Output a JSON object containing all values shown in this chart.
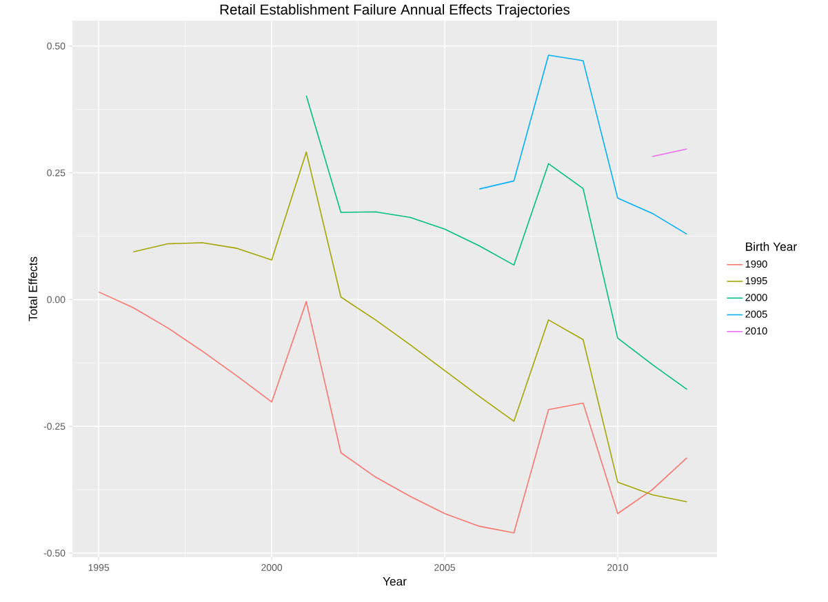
{
  "chart_data": {
    "type": "line",
    "title": "Retail Establishment Failure Annual Effects Trajectories",
    "xlabel": "Year",
    "ylabel": "Total Effects",
    "legend_title": "Birth Year",
    "legend": "right",
    "grid": true,
    "marker": "none",
    "line_style": "solid",
    "xlim": [
      1994.24,
      2012.87
    ],
    "ylim": [
      -0.508,
      0.55
    ],
    "xticks": [
      1995,
      2000,
      2005,
      2010
    ],
    "yticks": [
      {
        "value": -0.5,
        "label": "-0.50"
      },
      {
        "value": -0.25,
        "label": "-0.25"
      },
      {
        "value": 0,
        "label": "0.00"
      },
      {
        "value": 0.25,
        "label": "0.25"
      },
      {
        "value": 0.5,
        "label": "0.50"
      }
    ],
    "series": [
      {
        "name": "1990",
        "color": "#f8766d",
        "x": [
          1995,
          1996,
          1997,
          1998,
          1999,
          2000,
          2001,
          2002,
          2003,
          2004,
          2005,
          2006,
          2007,
          2008,
          2009,
          2010,
          2011,
          2012
        ],
        "values": [
          0.015,
          -0.016,
          -0.056,
          -0.102,
          -0.151,
          -0.202,
          -0.004,
          -0.302,
          -0.35,
          -0.388,
          -0.422,
          -0.447,
          -0.46,
          -0.217,
          -0.204,
          -0.422,
          -0.375,
          -0.312
        ]
      },
      {
        "name": "1995",
        "color": "#a3a500",
        "x": [
          1996,
          1997,
          1998,
          1999,
          2000,
          2001,
          2002,
          2003,
          2004,
          2005,
          2006,
          2007,
          2008,
          2009,
          2010,
          2011,
          2012
        ],
        "values": [
          0.094,
          0.11,
          0.112,
          0.101,
          0.078,
          0.291,
          0.005,
          -0.04,
          -0.089,
          -0.14,
          -0.191,
          -0.24,
          -0.04,
          -0.079,
          -0.36,
          -0.385,
          -0.399
        ]
      },
      {
        "name": "2000",
        "color": "#00bf7d",
        "x": [
          2001,
          2002,
          2003,
          2004,
          2005,
          2006,
          2007,
          2008,
          2009,
          2010,
          2011,
          2012
        ],
        "values": [
          0.402,
          0.172,
          0.173,
          0.162,
          0.139,
          0.106,
          0.068,
          0.268,
          0.219,
          -0.076,
          -0.128,
          -0.177
        ]
      },
      {
        "name": "2005",
        "color": "#00b0f6",
        "x": [
          2006,
          2007,
          2008,
          2009,
          2010,
          2011,
          2012
        ],
        "values": [
          0.218,
          0.234,
          0.482,
          0.471,
          0.2,
          0.17,
          0.129
        ]
      },
      {
        "name": "2010",
        "color": "#e76bf3",
        "x": [
          2011,
          2012
        ],
        "values": [
          0.282,
          0.297
        ]
      }
    ]
  }
}
